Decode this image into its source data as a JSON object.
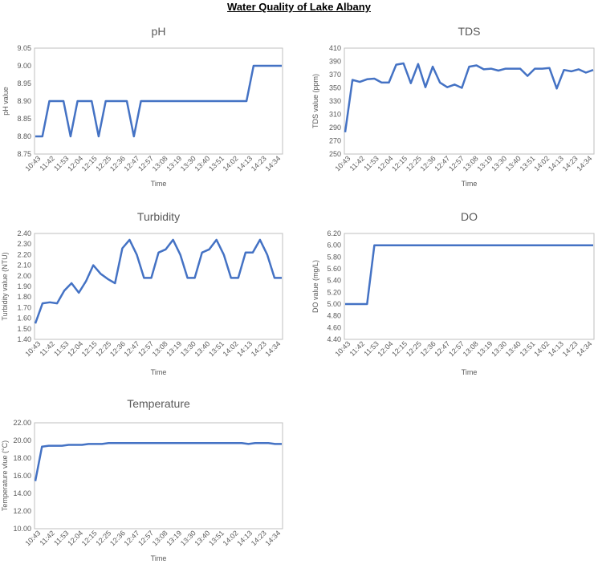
{
  "page_title": "Water Quality of Lake Albany",
  "colors": {
    "line": "#4472C4",
    "axis": "#BFBFBF",
    "text": "#595959"
  },
  "time_labels": [
    "10:43",
    "11:42",
    "11:53",
    "12:04",
    "12:15",
    "12:25",
    "12:36",
    "12:47",
    "12:57",
    "13:08",
    "13:19",
    "13:30",
    "13:40",
    "13:51",
    "14:02",
    "14:13",
    "14:23",
    "14:34"
  ],
  "chart_data": [
    {
      "type": "line",
      "title": "pH",
      "xlabel": "Time",
      "ylabel": "pH value",
      "ylim": [
        8.75,
        9.05
      ],
      "yticks": [
        "8.75",
        "8.80",
        "8.85",
        "8.90",
        "8.95",
        "9.00",
        "9.05"
      ],
      "series": [
        {
          "values": [
            8.8,
            8.8,
            8.9,
            8.9,
            8.9,
            8.8,
            8.9,
            8.9,
            8.9,
            8.8,
            8.9,
            8.9,
            8.9,
            8.9,
            8.8,
            8.9,
            8.9,
            8.9,
            8.9,
            8.9,
            8.9,
            8.9,
            8.9,
            8.9,
            8.9,
            8.9,
            8.9,
            8.9,
            8.9,
            8.9,
            8.9,
            9.0,
            9.0,
            9.0,
            9.0,
            9.0
          ]
        }
      ]
    },
    {
      "type": "line",
      "title": "TDS",
      "xlabel": "Time",
      "ylabel": "TDS value (ppm)",
      "ylim": [
        250,
        410
      ],
      "yticks": [
        "250",
        "270",
        "290",
        "310",
        "330",
        "350",
        "370",
        "390",
        "410"
      ],
      "series": [
        {
          "values": [
            283,
            362,
            359,
            363,
            364,
            358,
            358,
            385,
            387,
            357,
            386,
            351,
            382,
            358,
            351,
            355,
            350,
            382,
            384,
            378,
            379,
            376,
            379,
            379,
            379,
            368,
            379,
            379,
            380,
            349,
            377,
            375,
            378,
            373,
            377
          ]
        }
      ]
    },
    {
      "type": "line",
      "title": "Turbidity",
      "xlabel": "Time",
      "ylabel": "Turbidity value (NTU)",
      "ylim": [
        1.4,
        2.4
      ],
      "yticks": [
        "1.40",
        "1.50",
        "1.60",
        "1.70",
        "1.80",
        "1.90",
        "2.00",
        "2.10",
        "2.20",
        "2.30",
        "2.40"
      ],
      "series": [
        {
          "values": [
            1.55,
            1.74,
            1.75,
            1.74,
            1.86,
            1.93,
            1.84,
            1.95,
            2.1,
            2.02,
            1.97,
            1.93,
            2.26,
            2.34,
            2.2,
            1.98,
            1.98,
            2.22,
            2.25,
            2.34,
            2.2,
            1.98,
            1.98,
            2.22,
            2.25,
            2.34,
            2.2,
            1.98,
            1.98,
            2.22,
            2.22,
            2.34,
            2.2,
            1.98,
            1.98
          ]
        }
      ]
    },
    {
      "type": "line",
      "title": "DO",
      "xlabel": "Time",
      "ylabel": "DO value (mg/L)",
      "ylim": [
        4.4,
        6.2
      ],
      "yticks": [
        "4.40",
        "4.60",
        "4.80",
        "5.00",
        "5.20",
        "5.40",
        "5.60",
        "5.80",
        "6.00",
        "6.20"
      ],
      "series": [
        {
          "values": [
            5.0,
            5.0,
            5.0,
            5.0,
            6.0,
            6.0,
            6.0,
            6.0,
            6.0,
            6.0,
            6.0,
            6.0,
            6.0,
            6.0,
            6.0,
            6.0,
            6.0,
            6.0,
            6.0,
            6.0,
            6.0,
            6.0,
            6.0,
            6.0,
            6.0,
            6.0,
            6.0,
            6.0,
            6.0,
            6.0,
            6.0,
            6.0,
            6.0,
            6.0,
            6.0
          ]
        }
      ]
    },
    {
      "type": "line",
      "title": "Temperature",
      "xlabel": "Time",
      "ylabel": "Temperature vlue (°C)",
      "ylim": [
        10.0,
        22.0
      ],
      "yticks": [
        "10.00",
        "12.00",
        "14.00",
        "16.00",
        "18.00",
        "20.00",
        "22.00"
      ],
      "series": [
        {
          "values": [
            15.4,
            19.3,
            19.4,
            19.4,
            19.4,
            19.5,
            19.5,
            19.5,
            19.6,
            19.6,
            19.6,
            19.7,
            19.7,
            19.7,
            19.7,
            19.7,
            19.7,
            19.7,
            19.7,
            19.7,
            19.7,
            19.7,
            19.7,
            19.7,
            19.7,
            19.7,
            19.7,
            19.7,
            19.7,
            19.7,
            19.7,
            19.7,
            19.6,
            19.7,
            19.7,
            19.7,
            19.6,
            19.6
          ]
        }
      ]
    }
  ]
}
